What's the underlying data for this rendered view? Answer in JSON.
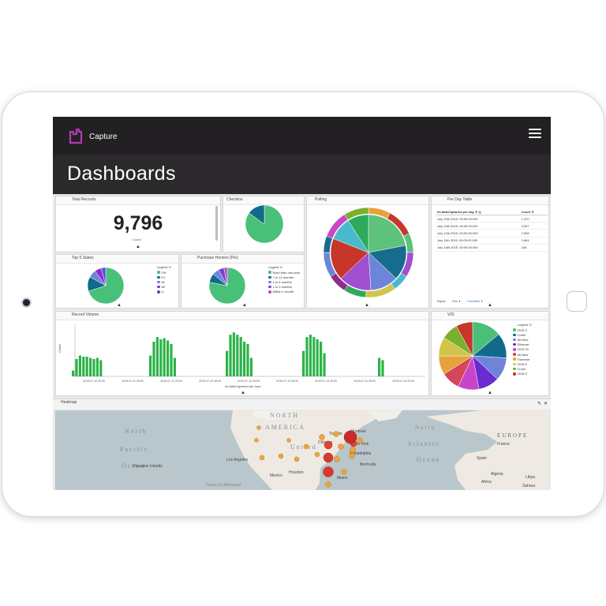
{
  "app": {
    "name": "Capture",
    "page_title": "Dashboards"
  },
  "colors": {
    "topbar": "#222022",
    "accent": "#8e2b8b",
    "bars": "#2db34a"
  },
  "panels": {
    "total_records": {
      "title": "Total Records",
      "value": "9,796",
      "label": "Count"
    },
    "checkins": {
      "title": "Checkins"
    },
    "polling": {
      "title": "Polling"
    },
    "per_day_table": {
      "title": "Per Day Table",
      "headers": [
        "its.dateCaptured per day ⇕ Q",
        "Count ⇕"
      ],
      "rows": [
        [
          "July 15th 2015, 00:00:00.000",
          "1,370"
        ],
        [
          "July 13th 2015, 00:00:00.000",
          "2,507"
        ],
        [
          "July 12th 2015, 00:00:00.000",
          "2,906"
        ],
        [
          "July 11th 2015, 00:00:00.000",
          "2,664"
        ],
        [
          "July 14th 2015, 00:00:00.000",
          "245"
        ]
      ],
      "export": [
        "Export:",
        "Raw ⬇",
        "Formatted ⬇"
      ]
    },
    "top5_states": {
      "title": "Top 5 States",
      "legend_title": "Legend ⊙",
      "legend": [
        "OH",
        "KY",
        "IN",
        "MI",
        "IL"
      ]
    },
    "purchase_horizon": {
      "title": "Purchase Horizon (Pie)",
      "legend_title": "Legend ⊙",
      "legend": [
        "More than one year",
        "7 to 12 months",
        "4 to 6 months",
        "1 to 3 months",
        "Within 1 month"
      ]
    },
    "record_volume": {
      "title": "Record Volume",
      "ylabel": "Count",
      "xlabel": "its.dateCaptured per hour",
      "ticks": [
        "2015-07-10 20:00",
        "2015-07-11 08:00",
        "2015-07-11 20:00",
        "2015-07-12 08:00",
        "2015-07-12 20:00",
        "2015-07-13 08:00",
        "2015-07-13 20:00",
        "2015-07-14 08:00",
        "2015-07-14 20:00"
      ]
    },
    "voi": {
      "title": "VOI",
      "legend_title": "Legend ⊙",
      "legend": [
        "2015 C",
        "Corell",
        "All-New",
        "Silverad",
        "2015 Ta",
        "All-New",
        "Traverse",
        "2015 E",
        "Cruze",
        "2015 S"
      ]
    },
    "heatmap": {
      "title": "Heatmap",
      "edit": "✎",
      "close": "✕"
    }
  },
  "map": {
    "labels": [
      "NORTH",
      "AMERICA",
      "North",
      "Pacific",
      "Ocean",
      "Atlantic",
      "Ocean",
      "North",
      "EUROPE",
      "Africa",
      "Algeria",
      "Libya",
      "Sahara",
      "France",
      "Spain",
      "Mexico",
      "Los Angeles",
      "New York",
      "Chicago",
      "Hawaiian Islands",
      "Miami",
      "Houston",
      "Philadelphia",
      "Toronto",
      "Montreal",
      "Bermuda",
      "United"
    ],
    "credit": "Tmaps by Mapquest"
  },
  "chart_data": [
    {
      "type": "pie",
      "title": "Checkins",
      "values": [
        85,
        15
      ],
      "colors": [
        "#48c07a",
        "#116a8c"
      ]
    },
    {
      "type": "pie",
      "title": "Polling",
      "values": [
        22,
        15,
        12,
        14,
        18,
        10,
        9
      ],
      "colors": [
        "#5dc27a",
        "#176c8d",
        "#6c85d8",
        "#a14ed1",
        "#c6372a",
        "#49b9cc",
        "#2fa95c"
      ]
    },
    {
      "type": "pie",
      "title": "Top 5 States",
      "categories": [
        "OH",
        "KY",
        "IN",
        "MI",
        "IL"
      ],
      "values": [
        70,
        13,
        7,
        6,
        4
      ],
      "colors": [
        "#48c07a",
        "#116a8c",
        "#6f84d8",
        "#8b2bd1",
        "#5c4ae0"
      ]
    },
    {
      "type": "pie",
      "title": "Purchase Horizon (Pie)",
      "categories": [
        "More than one year",
        "7 to 12 months",
        "4 to 6 months",
        "1 to 3 months",
        "Within 1 month"
      ],
      "values": [
        78,
        8,
        6,
        5,
        3
      ],
      "colors": [
        "#48c07a",
        "#116a8c",
        "#6f84d8",
        "#7a3fd4",
        "#c047c8"
      ]
    },
    {
      "type": "pie",
      "title": "VOI",
      "categories": [
        "2015 C",
        "Corell",
        "All-New",
        "Silverad",
        "2015 Ta",
        "All-New",
        "Traverse",
        "2015 E",
        "Cruze",
        "2015 S"
      ],
      "values": [
        14,
        12,
        11,
        10,
        10,
        9,
        9,
        9,
        8,
        8
      ],
      "colors": [
        "#48c07a",
        "#116a8c",
        "#6f84d8",
        "#6a2bd1",
        "#c945c7",
        "#d6455c",
        "#e8a23c",
        "#d1c44a",
        "#7ab02d",
        "#c6372a"
      ]
    },
    {
      "type": "bar",
      "title": "Record Volume",
      "ylabel": "Count",
      "xlabel": "its.dateCaptured per hour",
      "groups": [
        [
          5,
          15,
          18,
          17,
          17,
          16,
          15,
          16,
          14
        ],
        [
          18,
          30,
          34,
          32,
          33,
          31,
          28,
          16
        ],
        [
          22,
          36,
          38,
          36,
          34,
          30,
          28,
          16
        ],
        [
          22,
          34,
          36,
          34,
          32,
          30,
          20
        ],
        [
          16,
          14
        ]
      ],
      "ylim": [
        0,
        45
      ]
    }
  ]
}
